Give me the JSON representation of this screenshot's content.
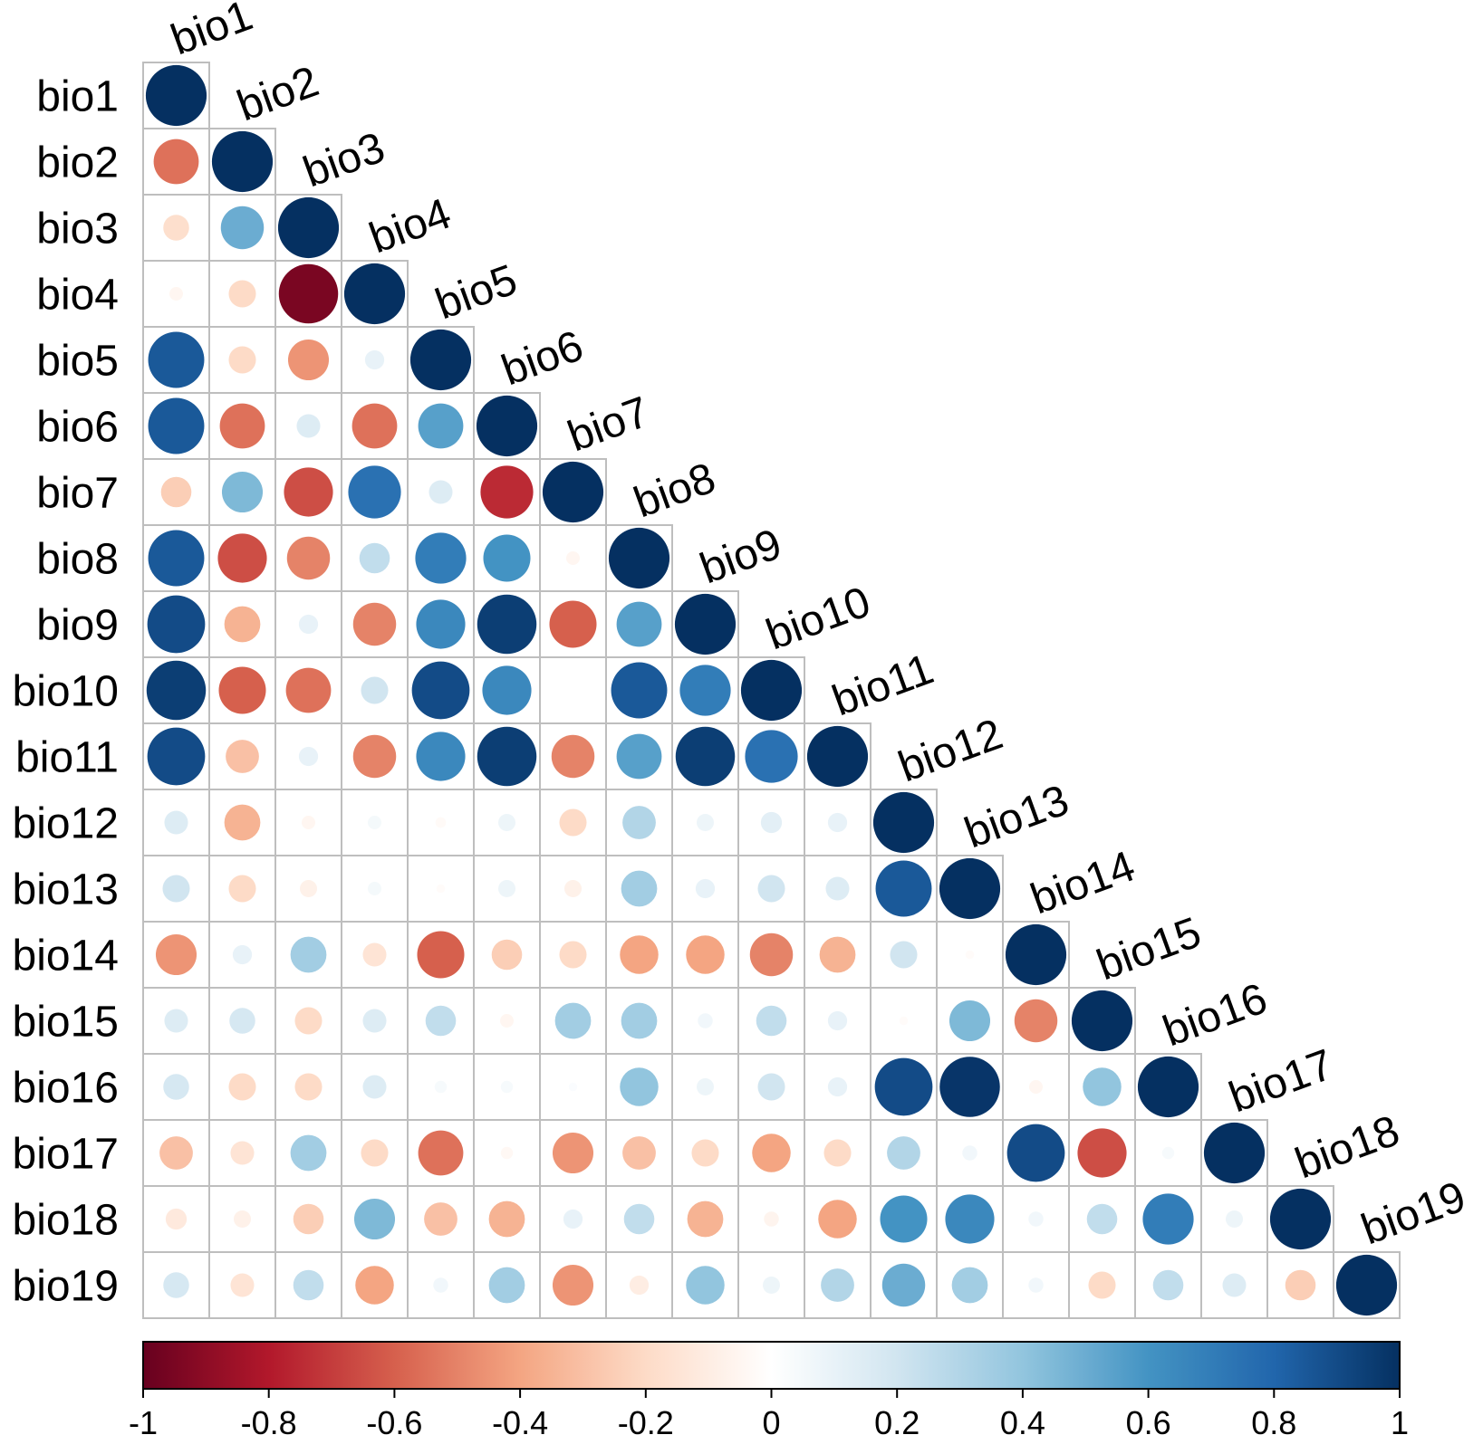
{
  "colors": {
    "negative_strong": "#67001F",
    "neutral": "#FFFFFF",
    "positive_strong": "#053061",
    "grid": "#BEBEBE"
  },
  "chart_data": {
    "type": "heatmap",
    "subtype": "correlation-matrix-lower-triangle-circles",
    "title": "",
    "variables": [
      "bio1",
      "bio2",
      "bio3",
      "bio4",
      "bio5",
      "bio6",
      "bio7",
      "bio8",
      "bio9",
      "bio10",
      "bio11",
      "bio12",
      "bio13",
      "bio14",
      "bio15",
      "bio16",
      "bio17",
      "bio18",
      "bio19"
    ],
    "matrix": [
      [
        1
      ],
      [
        -0.55,
        1
      ],
      [
        -0.18,
        0.5,
        1
      ],
      [
        -0.05,
        -0.2,
        -0.95,
        1
      ],
      [
        0.85,
        -0.2,
        -0.45,
        0.1,
        1
      ],
      [
        0.85,
        -0.55,
        0.15,
        -0.55,
        0.55,
        1
      ],
      [
        -0.25,
        0.45,
        -0.65,
        0.75,
        0.15,
        -0.75,
        1
      ],
      [
        0.85,
        -0.65,
        -0.5,
        0.25,
        0.7,
        0.6,
        -0.05,
        1
      ],
      [
        0.9,
        -0.35,
        0.1,
        -0.5,
        0.65,
        0.95,
        -0.6,
        0.55,
        1
      ],
      [
        0.95,
        -0.6,
        -0.55,
        0.2,
        0.9,
        0.65,
        0.0,
        0.85,
        0.7,
        1
      ],
      [
        0.9,
        -0.3,
        0.1,
        -0.5,
        0.65,
        0.95,
        -0.5,
        0.55,
        0.95,
        0.75,
        1
      ],
      [
        0.15,
        -0.35,
        -0.05,
        0.05,
        -0.03,
        0.08,
        -0.2,
        0.3,
        0.08,
        0.12,
        0.1,
        1
      ],
      [
        0.2,
        -0.2,
        -0.08,
        0.05,
        -0.02,
        0.08,
        -0.08,
        0.35,
        0.1,
        0.2,
        0.15,
        0.85,
        1
      ],
      [
        -0.45,
        0.1,
        0.35,
        -0.15,
        -0.6,
        -0.25,
        -0.2,
        -0.4,
        -0.4,
        -0.5,
        -0.35,
        0.2,
        -0.02,
        1
      ],
      [
        0.15,
        0.18,
        -0.2,
        0.15,
        0.25,
        -0.05,
        0.35,
        0.35,
        0.06,
        0.25,
        0.1,
        -0.02,
        0.45,
        -0.5,
        1
      ],
      [
        0.18,
        -0.2,
        -0.2,
        0.15,
        0.04,
        0.04,
        0.02,
        0.4,
        0.08,
        0.2,
        0.1,
        0.9,
        0.98,
        -0.05,
        0.4,
        1
      ],
      [
        -0.3,
        -0.15,
        0.35,
        -0.2,
        -0.55,
        -0.04,
        -0.45,
        -0.3,
        -0.2,
        -0.4,
        -0.2,
        0.3,
        0.06,
        0.9,
        -0.65,
        0.04,
        1
      ],
      [
        -0.12,
        -0.08,
        -0.25,
        0.45,
        -0.3,
        -0.35,
        0.1,
        0.25,
        -0.35,
        -0.06,
        -0.4,
        0.6,
        0.65,
        0.06,
        0.25,
        0.7,
        0.08,
        1
      ],
      [
        0.18,
        -0.15,
        0.25,
        -0.4,
        0.06,
        0.35,
        -0.45,
        -0.1,
        0.4,
        0.08,
        0.3,
        0.5,
        0.35,
        0.06,
        -0.2,
        0.25,
        0.15,
        -0.25,
        1
      ]
    ],
    "colorbar": {
      "range": [
        -1,
        1
      ],
      "ticks": [
        "-1",
        "-0.8",
        "-0.6",
        "-0.4",
        "-0.2",
        "0",
        "0.2",
        "0.4",
        "0.6",
        "0.8",
        "1"
      ]
    }
  }
}
